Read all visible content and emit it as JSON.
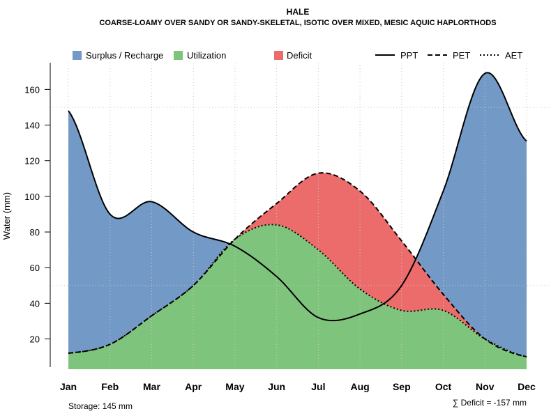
{
  "chart_data": {
    "type": "area",
    "title": "HALE",
    "subtitle": "COARSE-LOAMY OVER SANDY OR SANDY-SKELETAL, ISOTIC OVER MIXED, MESIC AQUIC HAPLORTHODS",
    "ylabel": "Water (mm)",
    "xlabel": "",
    "ylim": [
      3,
      175
    ],
    "yticks": [
      20,
      40,
      60,
      80,
      100,
      120,
      140,
      160
    ],
    "categories": [
      "Jan",
      "Feb",
      "Mar",
      "Apr",
      "May",
      "Jun",
      "Jul",
      "Aug",
      "Sep",
      "Oct",
      "Nov",
      "Dec"
    ],
    "series": [
      {
        "name": "PPT",
        "style": "solid",
        "values": [
          148,
          90,
          97,
          80,
          72,
          55,
          32,
          34,
          50,
          103,
          169,
          131
        ]
      },
      {
        "name": "PET",
        "style": "dashed",
        "values": [
          12,
          17,
          33,
          50,
          76,
          96,
          113,
          103,
          75,
          45,
          20,
          10
        ]
      },
      {
        "name": "AET",
        "style": "dotted",
        "values": [
          12,
          17,
          33,
          50,
          76,
          84,
          70,
          48,
          36,
          36,
          20,
          10
        ]
      }
    ],
    "areas": [
      {
        "name": "Surplus / Recharge",
        "color": "#7399c6"
      },
      {
        "name": "Utilization",
        "color": "#7fc47c"
      },
      {
        "name": "Deficit",
        "color": "#ec6b6b"
      }
    ],
    "legend": {
      "fills": [
        "Surplus / Recharge",
        "Utilization",
        "Deficit"
      ],
      "lines": [
        "PPT",
        "PET",
        "AET"
      ],
      "placement": "top"
    },
    "annotations": {
      "storage": "Storage: 145 mm",
      "deficit": "∑ Deficit = -157 mm"
    },
    "grid": true
  }
}
